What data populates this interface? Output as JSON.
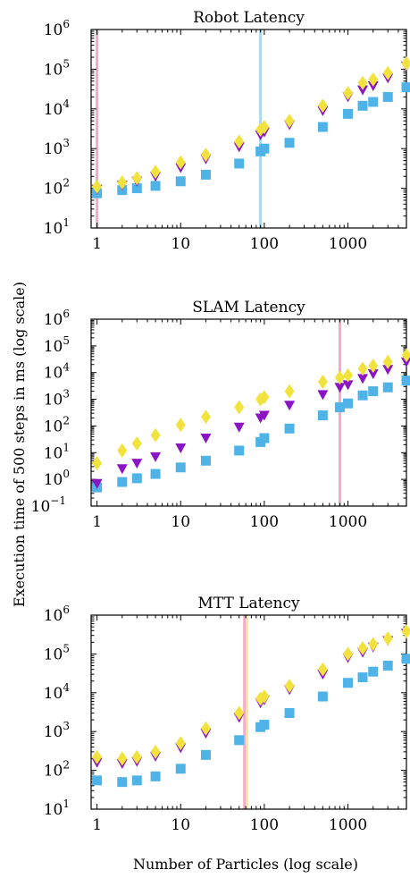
{
  "labels": {
    "ylabel": "Execution time of 500 steps in ms (log scale)",
    "xlabel": "Number of Particles (log scale)"
  },
  "chart_data": [
    {
      "type": "scatter",
      "title": "Robot Latency",
      "xscale": "log",
      "yscale": "log",
      "xlim": [
        0.85,
        5000
      ],
      "ylim": [
        10,
        1000000
      ],
      "x_ticks": [
        "1",
        "10",
        "100",
        "1000"
      ],
      "y_ticks": [
        "10^1",
        "10^2",
        "10^3",
        "10^4",
        "10^5",
        "10^6"
      ],
      "vlines": [
        {
          "x": 1,
          "color": "#f4a9c8"
        },
        {
          "x": 90,
          "color": "#a9d9f0"
        }
      ],
      "series": [
        {
          "marker": "diamond",
          "color": "#f2e23e",
          "x": [
            1,
            2,
            3,
            5,
            10,
            20,
            50,
            90,
            100,
            200,
            500,
            1000,
            1500,
            2000,
            3000,
            5000
          ],
          "y": [
            110,
            140,
            180,
            260,
            450,
            700,
            1500,
            3000,
            3500,
            5000,
            12000,
            25000,
            45000,
            55000,
            80000,
            140000
          ]
        },
        {
          "marker": "triangle-down",
          "color": "#8b14c4",
          "x": [
            1,
            2,
            3,
            5,
            10,
            20,
            50,
            90,
            100,
            200,
            500,
            1000,
            1500,
            2000,
            3000,
            5000
          ],
          "y": [
            95,
            120,
            150,
            200,
            330,
            550,
            1100,
            2200,
            2600,
            4000,
            9000,
            20000,
            30000,
            38000,
            60000,
            120000
          ]
        },
        {
          "marker": "square",
          "color": "#4fb3e8",
          "x": [
            1,
            2,
            3,
            5,
            10,
            20,
            50,
            90,
            100,
            200,
            500,
            1000,
            1500,
            2000,
            3000,
            5000
          ],
          "y": [
            75,
            90,
            100,
            115,
            150,
            220,
            420,
            850,
            1000,
            1400,
            3500,
            7500,
            12000,
            15000,
            20000,
            35000
          ]
        }
      ]
    },
    {
      "type": "scatter",
      "title": "SLAM Latency",
      "xscale": "log",
      "yscale": "log",
      "xlim": [
        0.85,
        5000
      ],
      "ylim": [
        0.1,
        1000000
      ],
      "x_ticks": [
        "1",
        "10",
        "100",
        "1000"
      ],
      "y_ticks": [
        "10^-1",
        "10^0",
        "10^1",
        "10^2",
        "10^3",
        "10^4",
        "10^5",
        "10^6"
      ],
      "vlines": [
        {
          "x": 800,
          "color": "#f4a9c8"
        }
      ],
      "series": [
        {
          "marker": "diamond",
          "color": "#f2e23e",
          "x": [
            1,
            2,
            3,
            5,
            10,
            20,
            50,
            90,
            100,
            200,
            500,
            800,
            1000,
            1500,
            2000,
            3000,
            5000
          ],
          "y": [
            4,
            12,
            22,
            45,
            110,
            220,
            500,
            1000,
            1200,
            2000,
            4500,
            6500,
            8000,
            14000,
            18000,
            25000,
            45000
          ]
        },
        {
          "marker": "triangle-down",
          "color": "#8b14c4",
          "x": [
            1,
            2,
            3,
            5,
            10,
            20,
            50,
            90,
            100,
            200,
            500,
            800,
            1000,
            1500,
            2000,
            3000,
            5000
          ],
          "y": [
            0.7,
            2.5,
            4,
            7,
            15,
            35,
            90,
            200,
            250,
            600,
            1500,
            2800,
            3500,
            6000,
            9000,
            13000,
            25000
          ]
        },
        {
          "marker": "square",
          "color": "#4fb3e8",
          "x": [
            1,
            2,
            3,
            5,
            10,
            20,
            50,
            90,
            100,
            200,
            500,
            800,
            1000,
            1500,
            2000,
            3000,
            5000
          ],
          "y": [
            0.5,
            0.8,
            1.1,
            1.6,
            2.8,
            5,
            12,
            25,
            35,
            80,
            250,
            500,
            700,
            1400,
            2000,
            2800,
            5000
          ]
        }
      ]
    },
    {
      "type": "scatter",
      "title": "MTT Latency",
      "xscale": "log",
      "yscale": "log",
      "xlim": [
        0.85,
        5000
      ],
      "ylim": [
        10,
        1000000
      ],
      "x_ticks": [
        "1",
        "10",
        "100",
        "1000"
      ],
      "y_ticks": [
        "10^1",
        "10^2",
        "10^3",
        "10^4",
        "10^5",
        "10^6"
      ],
      "vlines": [
        {
          "x": 58,
          "color": "#f4a9c8"
        },
        {
          "x": 62,
          "color": "#f2e8a0"
        }
      ],
      "series": [
        {
          "marker": "diamond",
          "color": "#f2e23e",
          "x": [
            1,
            2,
            3,
            5,
            10,
            20,
            50,
            90,
            100,
            200,
            500,
            1000,
            1500,
            2000,
            3000,
            5000
          ],
          "y": [
            220,
            200,
            220,
            300,
            500,
            1200,
            3000,
            7000,
            8000,
            15000,
            40000,
            100000,
            140000,
            180000,
            250000,
            380000
          ]
        },
        {
          "marker": "triangle-down",
          "color": "#8b14c4",
          "x": [
            1,
            2,
            3,
            5,
            10,
            20,
            50,
            90,
            100,
            200,
            500,
            1000,
            1500,
            2000,
            3000,
            5000
          ],
          "y": [
            160,
            150,
            170,
            230,
            380,
            900,
            2300,
            5500,
            6500,
            12000,
            30000,
            80000,
            110000,
            150000,
            220000,
            340000
          ]
        },
        {
          "marker": "square",
          "color": "#4fb3e8",
          "x": [
            1,
            2,
            3,
            5,
            10,
            20,
            50,
            90,
            100,
            200,
            500,
            1000,
            1500,
            2000,
            3000,
            5000
          ],
          "y": [
            55,
            50,
            55,
            70,
            110,
            250,
            600,
            1300,
            1500,
            3000,
            8000,
            18000,
            25000,
            35000,
            50000,
            75000
          ]
        }
      ]
    }
  ]
}
